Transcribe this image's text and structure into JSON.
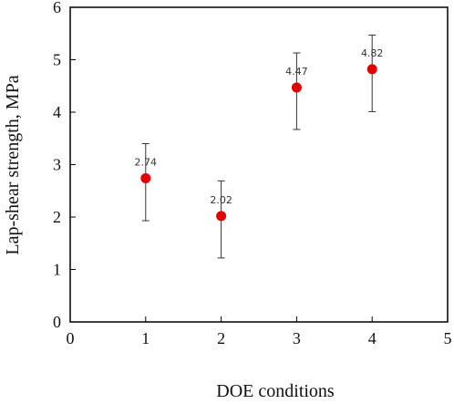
{
  "chart_data": {
    "type": "scatter",
    "title": "",
    "xlabel": "DOE conditions",
    "ylabel": "Lap-shear strength, MPa",
    "xlim": [
      0,
      5
    ],
    "ylim": [
      0,
      6
    ],
    "xticks": [
      0,
      1,
      2,
      3,
      4,
      5
    ],
    "yticks": [
      0,
      1,
      2,
      3,
      4,
      5,
      6
    ],
    "grid": false,
    "legend": "none",
    "marker_color": "#e00000",
    "errorbar_color": "#333333",
    "points": [
      {
        "x": 1,
        "y": 2.74,
        "label": "2.74",
        "err_low": 1.93,
        "err_high": 3.4
      },
      {
        "x": 2,
        "y": 2.02,
        "label": "2.02",
        "err_low": 1.22,
        "err_high": 2.69
      },
      {
        "x": 3,
        "y": 4.47,
        "label": "4.47",
        "err_low": 3.67,
        "err_high": 5.13
      },
      {
        "x": 4,
        "y": 4.82,
        "label": "4.82",
        "err_low": 4.01,
        "err_high": 5.47
      }
    ]
  }
}
